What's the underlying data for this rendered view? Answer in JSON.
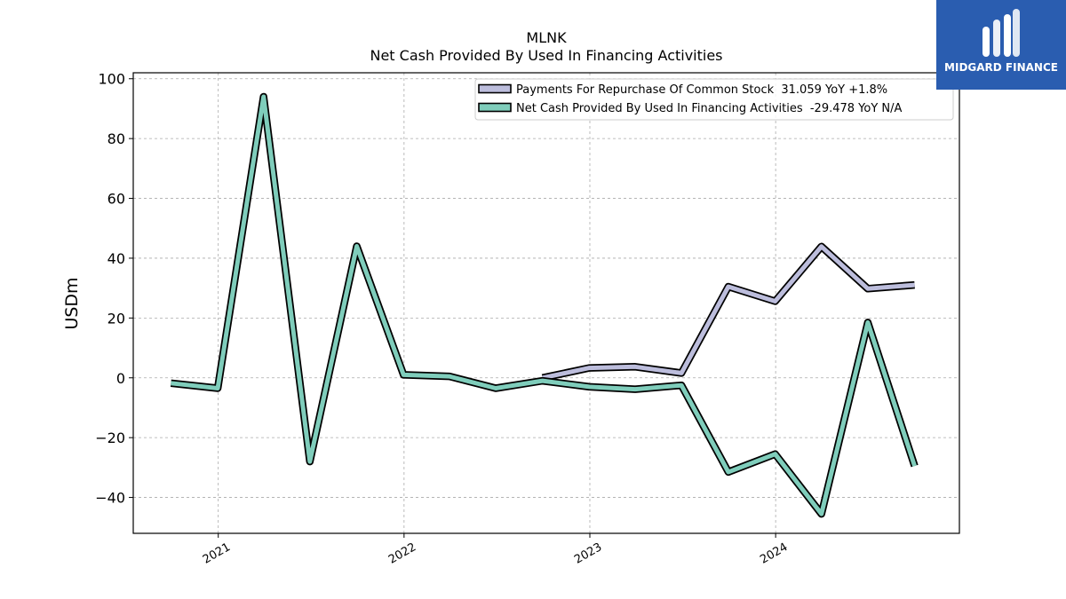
{
  "chart_data": {
    "type": "line",
    "title": "MLNK",
    "subtitle": "Net Cash Provided By Used In Financing Activities",
    "ylabel": "USDm",
    "xlabel": "",
    "ylim": [
      -52,
      102
    ],
    "yticks": [
      100,
      80,
      60,
      40,
      20,
      0,
      -20,
      -40
    ],
    "ytick_labels": [
      "100",
      "80",
      "60",
      "40",
      "20",
      "0",
      "−20",
      "−40"
    ],
    "xlim": [
      "2020-07-18",
      "2024-12-27"
    ],
    "xticks": [
      "2021-01-01",
      "2022-01-01",
      "2023-01-01",
      "2024-01-01"
    ],
    "xtick_labels": [
      "2021",
      "2022",
      "2023",
      "2024"
    ],
    "grid": true,
    "legend_position": "upper-right",
    "series": [
      {
        "name": "Payments For Repurchase Of Common Stock",
        "legend_label": "Payments For Repurchase Of Common Stock  31.059 YoY +1.8%",
        "color": "#bcbddc",
        "x": [
          "2022-09-30",
          "2022-12-31",
          "2023-03-31",
          "2023-06-30",
          "2023-09-30",
          "2023-12-31",
          "2024-03-31",
          "2024-06-30",
          "2024-09-30"
        ],
        "y": [
          0.0,
          3.3,
          3.7,
          1.6,
          30.5,
          25.6,
          43.9,
          29.8,
          31.059
        ]
      },
      {
        "name": "Net Cash Provided By Used In Financing Activities",
        "legend_label": "Net Cash Provided By Used In Financing Activities  -29.478 YoY N/A",
        "color": "#7fcdbb",
        "x": [
          "2020-09-30",
          "2020-12-31",
          "2021-03-31",
          "2021-06-30",
          "2021-09-30",
          "2021-12-31",
          "2022-03-31",
          "2022-06-30",
          "2022-09-30",
          "2022-12-31",
          "2023-03-31",
          "2023-06-30",
          "2023-09-30",
          "2023-12-31",
          "2024-03-31",
          "2024-06-30",
          "2024-09-30"
        ],
        "y": [
          -1.8,
          -3.5,
          94.0,
          -28.0,
          44.0,
          1.0,
          0.5,
          -3.5,
          -1.0,
          -3.0,
          -3.8,
          -2.5,
          -31.5,
          -25.5,
          -45.5,
          18.5,
          -29.478
        ]
      }
    ]
  },
  "branding": {
    "logo_text": "MIDGARD FINANCE",
    "logo_color": "#2a5db0"
  }
}
